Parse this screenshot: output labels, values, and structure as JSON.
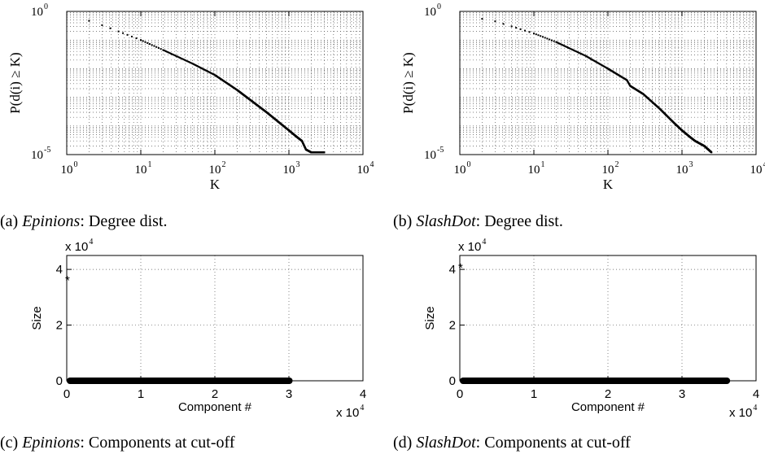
{
  "chart_data": [
    {
      "id": "a",
      "type": "scatter",
      "scale": "loglog",
      "caption": {
        "prefix": "(a)",
        "name": "Epinions",
        "rest": ": Degree dist."
      },
      "xlabel": "K",
      "ylabel": "P(d(i) ≥ K)",
      "xlim": [
        1,
        10000
      ],
      "ylim": [
        1e-05,
        1
      ],
      "x_ticks": [
        {
          "base": "10",
          "exp": "0"
        },
        {
          "base": "10",
          "exp": "1"
        },
        {
          "base": "10",
          "exp": "2"
        },
        {
          "base": "10",
          "exp": "3"
        },
        {
          "base": "10",
          "exp": "4"
        }
      ],
      "y_ticks": [
        {
          "base": "10",
          "exp": "-5"
        },
        {
          "base": "10",
          "exp": "0"
        }
      ],
      "grid": true,
      "curve": [
        [
          2,
          0.47
        ],
        [
          3,
          0.33
        ],
        [
          5,
          0.2
        ],
        [
          10,
          0.1
        ],
        [
          20,
          0.045
        ],
        [
          50,
          0.015
        ],
        [
          100,
          0.006
        ],
        [
          200,
          0.0018
        ],
        [
          500,
          0.0003
        ],
        [
          1000,
          7e-05
        ],
        [
          1300,
          4e-05
        ],
        [
          1500,
          3e-05
        ],
        [
          1700,
          1.5e-05
        ],
        [
          2000,
          1.2e-05
        ],
        [
          3000,
          1.2e-05
        ]
      ]
    },
    {
      "id": "b",
      "type": "scatter",
      "scale": "loglog",
      "caption": {
        "prefix": "(b)",
        "name": "SlashDot",
        "rest": ": Degree dist."
      },
      "xlabel": "K",
      "ylabel": "P(d(i) ≥ K)",
      "xlim": [
        1,
        10000
      ],
      "ylim": [
        1e-05,
        1
      ],
      "x_ticks": [
        {
          "base": "10",
          "exp": "0"
        },
        {
          "base": "10",
          "exp": "1"
        },
        {
          "base": "10",
          "exp": "2"
        },
        {
          "base": "10",
          "exp": "3"
        },
        {
          "base": "10",
          "exp": "4"
        }
      ],
      "y_ticks": [
        {
          "base": "10",
          "exp": "-5"
        },
        {
          "base": "10",
          "exp": "0"
        }
      ],
      "grid": true,
      "curve": [
        [
          2,
          0.55
        ],
        [
          3,
          0.45
        ],
        [
          5,
          0.3
        ],
        [
          10,
          0.17
        ],
        [
          20,
          0.085
        ],
        [
          50,
          0.028
        ],
        [
          100,
          0.01
        ],
        [
          180,
          0.004
        ],
        [
          200,
          0.0025
        ],
        [
          300,
          0.0013
        ],
        [
          500,
          0.0004
        ],
        [
          800,
          0.00012
        ],
        [
          1000,
          7e-05
        ],
        [
          1300,
          4e-05
        ],
        [
          1500,
          3e-05
        ],
        [
          2000,
          2e-05
        ],
        [
          2500,
          1.2e-05
        ]
      ]
    },
    {
      "id": "c",
      "type": "scatter",
      "caption": {
        "prefix": "(c)",
        "name": "Epinions",
        "rest": ": Components at cut-off"
      },
      "xlabel": "Component #",
      "ylabel": "Size",
      "xlim": [
        0,
        40000
      ],
      "ylim": [
        0,
        45000
      ],
      "x_ticks": [
        "0",
        "1",
        "2",
        "3",
        "4"
      ],
      "y_ticks": [
        "0",
        "2",
        "4"
      ],
      "x_multiplier": {
        "base": "x 10",
        "exp": "4"
      },
      "y_multiplier": {
        "base": "x 10",
        "exp": "4"
      },
      "grid": true,
      "outlier": {
        "x": 0,
        "y": 37000
      },
      "baseline_extent": [
        0,
        30500
      ]
    },
    {
      "id": "d",
      "type": "scatter",
      "caption": {
        "prefix": "(d)",
        "name": "SlashDot",
        "rest": ": Components at cut-off"
      },
      "xlabel": "Component #",
      "ylabel": "Size",
      "xlim": [
        0,
        40000
      ],
      "ylim": [
        0,
        45000
      ],
      "x_ticks": [
        "0",
        "1",
        "2",
        "3",
        "4"
      ],
      "y_ticks": [
        "0",
        "2",
        "4"
      ],
      "x_multiplier": {
        "base": "x 10",
        "exp": "4"
      },
      "y_multiplier": {
        "base": "x 10",
        "exp": "4"
      },
      "grid": true,
      "outlier": {
        "x": 0,
        "y": 41500
      },
      "baseline_extent": [
        0,
        36500
      ]
    }
  ]
}
